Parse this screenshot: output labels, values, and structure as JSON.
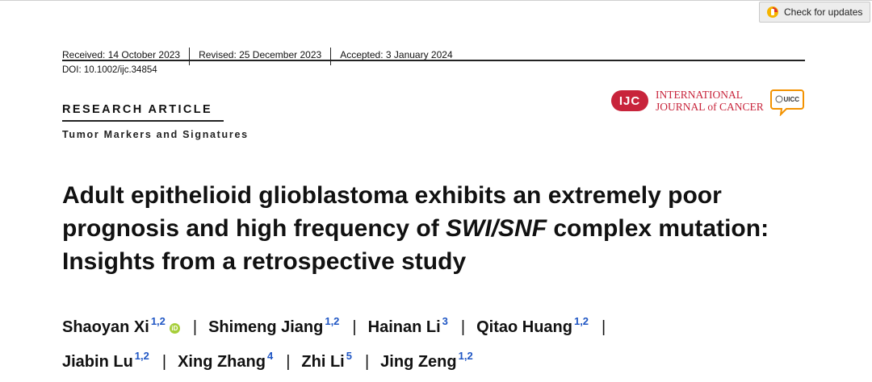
{
  "check_updates": {
    "label": "Check for updates"
  },
  "header": {
    "received": "Received: 14 October 2023",
    "revised": "Revised: 25 December 2023",
    "accepted": "Accepted: 3 January 2024",
    "doi": "DOI: 10.1002/ijc.34854"
  },
  "journal": {
    "badge": "IJC",
    "line1": "INTERNATIONAL",
    "line2": "JOURNAL of CANCER",
    "uicc": "UICC",
    "colors": {
      "brand": "#c8243b",
      "uicc": "#f39200"
    }
  },
  "article": {
    "section": "RESEARCH ARTICLE",
    "subsection": "Tumor Markers and Signatures",
    "title_part1": "Adult epithelioid glioblastoma exhibits an extremely poor prognosis and high frequency of ",
    "title_italic": "SWI/SNF",
    "title_part2": " complex mutation: Insights from a retrospective study"
  },
  "authors": [
    {
      "name": "Shaoyan Xi",
      "aff": "1,2"
    },
    {
      "name": "Shimeng Jiang",
      "aff": "1,2"
    },
    {
      "name": "Hainan Li",
      "aff": "3"
    },
    {
      "name": "Qitao Huang",
      "aff": "1,2"
    },
    {
      "name": "Jiabin Lu",
      "aff": "1,2"
    },
    {
      "name": "Xing Zhang",
      "aff": "4"
    },
    {
      "name": "Zhi Li",
      "aff": "5"
    },
    {
      "name": "Jing Zeng",
      "aff": "1,2"
    }
  ],
  "separator": "|",
  "orcid_label": "iD",
  "link_color": "#1f56c4"
}
